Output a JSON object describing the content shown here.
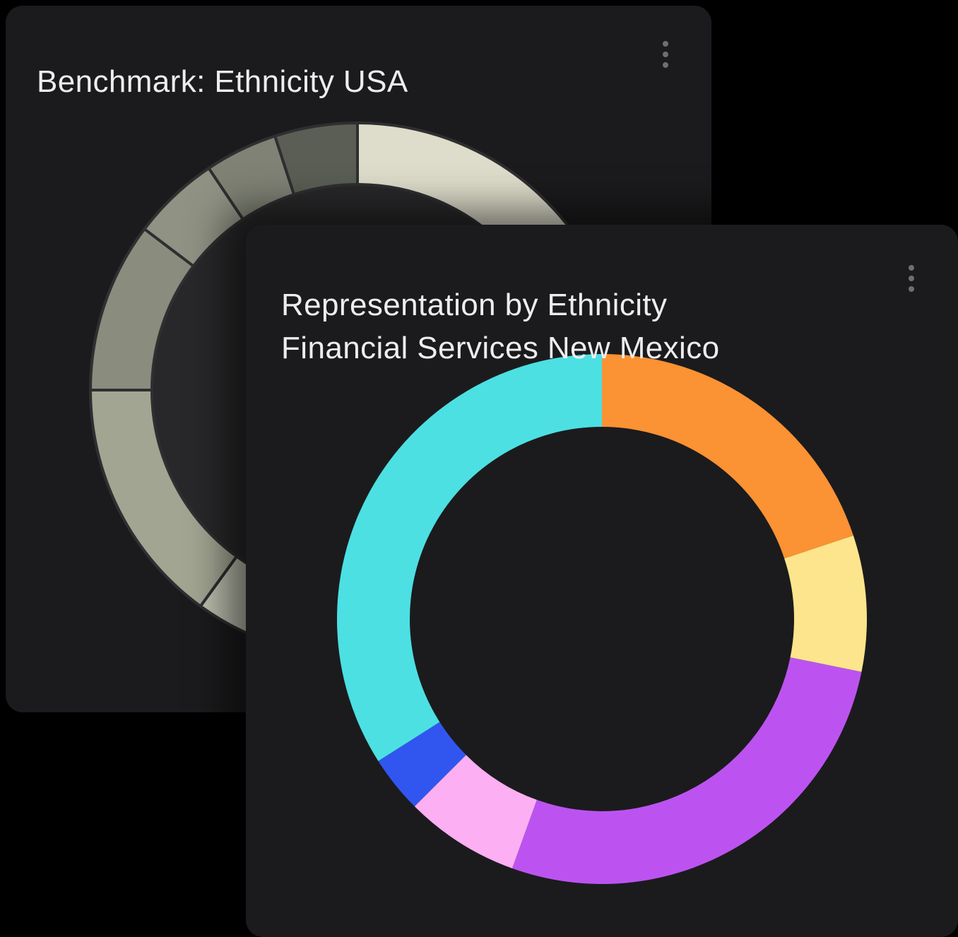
{
  "theme": {
    "page_bg": "#000000",
    "card_bg": "#1B1B1D",
    "title_color": "#EDEDEF",
    "menu_dot_color": "#6F6F72",
    "donut_divider_color": "#2F2F31",
    "benchmark_hole_fill": "#28282A"
  },
  "benchmark_card": {
    "title": "Benchmark: Ethnicity USA",
    "menu_icon": "kebab-vertical-icon"
  },
  "representation_card": {
    "title_line1": "Representation by Ethnicity",
    "title_line2": "Financial Services New Mexico",
    "menu_icon": "kebab-vertical-icon"
  },
  "chart_data": [
    {
      "type": "donut",
      "title": "Benchmark: Ethnicity USA",
      "legend": "none",
      "labels_shown": false,
      "values_estimated_from_arc_angles": true,
      "occluded": "clockwise region ~52°–204° hidden behind front card",
      "start_angle_deg": 0,
      "direction": "clockwise",
      "divider_stroke": true,
      "hole_fill": true,
      "slices": [
        {
          "color": "#DEDDCB",
          "value_pct": 52.8
        },
        {
          "color": "#BEC0B0",
          "value_pct": 7.2
        },
        {
          "color": "#A3A593",
          "value_pct": 15.0
        },
        {
          "color": "#8A8C7E",
          "value_pct": 10.3
        },
        {
          "color": "#909284",
          "value_pct": 5.3
        },
        {
          "color": "#7F8275",
          "value_pct": 4.4
        },
        {
          "color": "#5B5E54",
          "value_pct": 5.0
        }
      ]
    },
    {
      "type": "donut",
      "title": "Representation by Ethnicity — Financial Services New Mexico",
      "legend": "none",
      "labels_shown": false,
      "values_estimated_from_arc_angles": true,
      "start_angle_deg": 0,
      "direction": "clockwise",
      "divider_stroke": false,
      "hole_fill": false,
      "slices": [
        {
          "color": "#FB9233",
          "value_pct": 19.9
        },
        {
          "color": "#FCE58C",
          "value_pct": 8.3
        },
        {
          "color": "#BC53F0",
          "value_pct": 27.3
        },
        {
          "color": "#FCAFF2",
          "value_pct": 7.0
        },
        {
          "color": "#3156F0",
          "value_pct": 3.5
        },
        {
          "color": "#4CE0E3",
          "value_pct": 34.0
        }
      ]
    }
  ]
}
